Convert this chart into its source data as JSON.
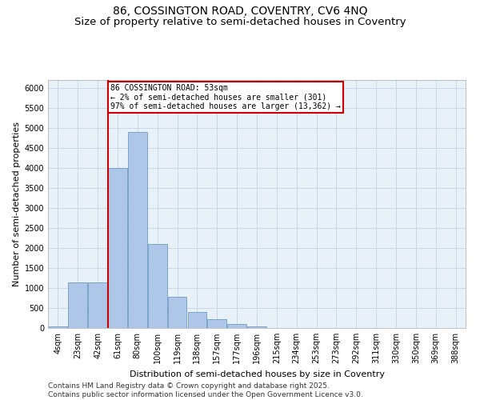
{
  "title_line1": "86, COSSINGTON ROAD, COVENTRY, CV6 4NQ",
  "title_line2": "Size of property relative to semi-detached houses in Coventry",
  "xlabel": "Distribution of semi-detached houses by size in Coventry",
  "ylabel": "Number of semi-detached properties",
  "categories": [
    "4sqm",
    "23sqm",
    "42sqm",
    "61sqm",
    "80sqm",
    "100sqm",
    "119sqm",
    "138sqm",
    "157sqm",
    "177sqm",
    "196sqm",
    "215sqm",
    "234sqm",
    "253sqm",
    "273sqm",
    "292sqm",
    "311sqm",
    "330sqm",
    "350sqm",
    "369sqm",
    "388sqm"
  ],
  "values": [
    50,
    1150,
    1150,
    4000,
    4900,
    2100,
    780,
    400,
    230,
    110,
    50,
    10,
    5,
    0,
    0,
    0,
    0,
    0,
    0,
    0,
    0
  ],
  "bar_color": "#aec6e8",
  "bar_edgecolor": "#5a8fc0",
  "vline_x": 2.5,
  "vline_color": "#cc0000",
  "annotation_title": "86 COSSINGTON ROAD: 53sqm",
  "annotation_line1": "← 2% of semi-detached houses are smaller (301)",
  "annotation_line2": "97% of semi-detached houses are larger (13,362) →",
  "annotation_box_color": "#cc0000",
  "ylim": [
    0,
    6200
  ],
  "yticks": [
    0,
    500,
    1000,
    1500,
    2000,
    2500,
    3000,
    3500,
    4000,
    4500,
    5000,
    5500,
    6000
  ],
  "grid_color": "#c8d8e8",
  "background_color": "#e8f0f8",
  "footer_line1": "Contains HM Land Registry data © Crown copyright and database right 2025.",
  "footer_line2": "Contains public sector information licensed under the Open Government Licence v3.0.",
  "title_fontsize": 10,
  "axis_label_fontsize": 8,
  "tick_fontsize": 7,
  "footer_fontsize": 6.5
}
